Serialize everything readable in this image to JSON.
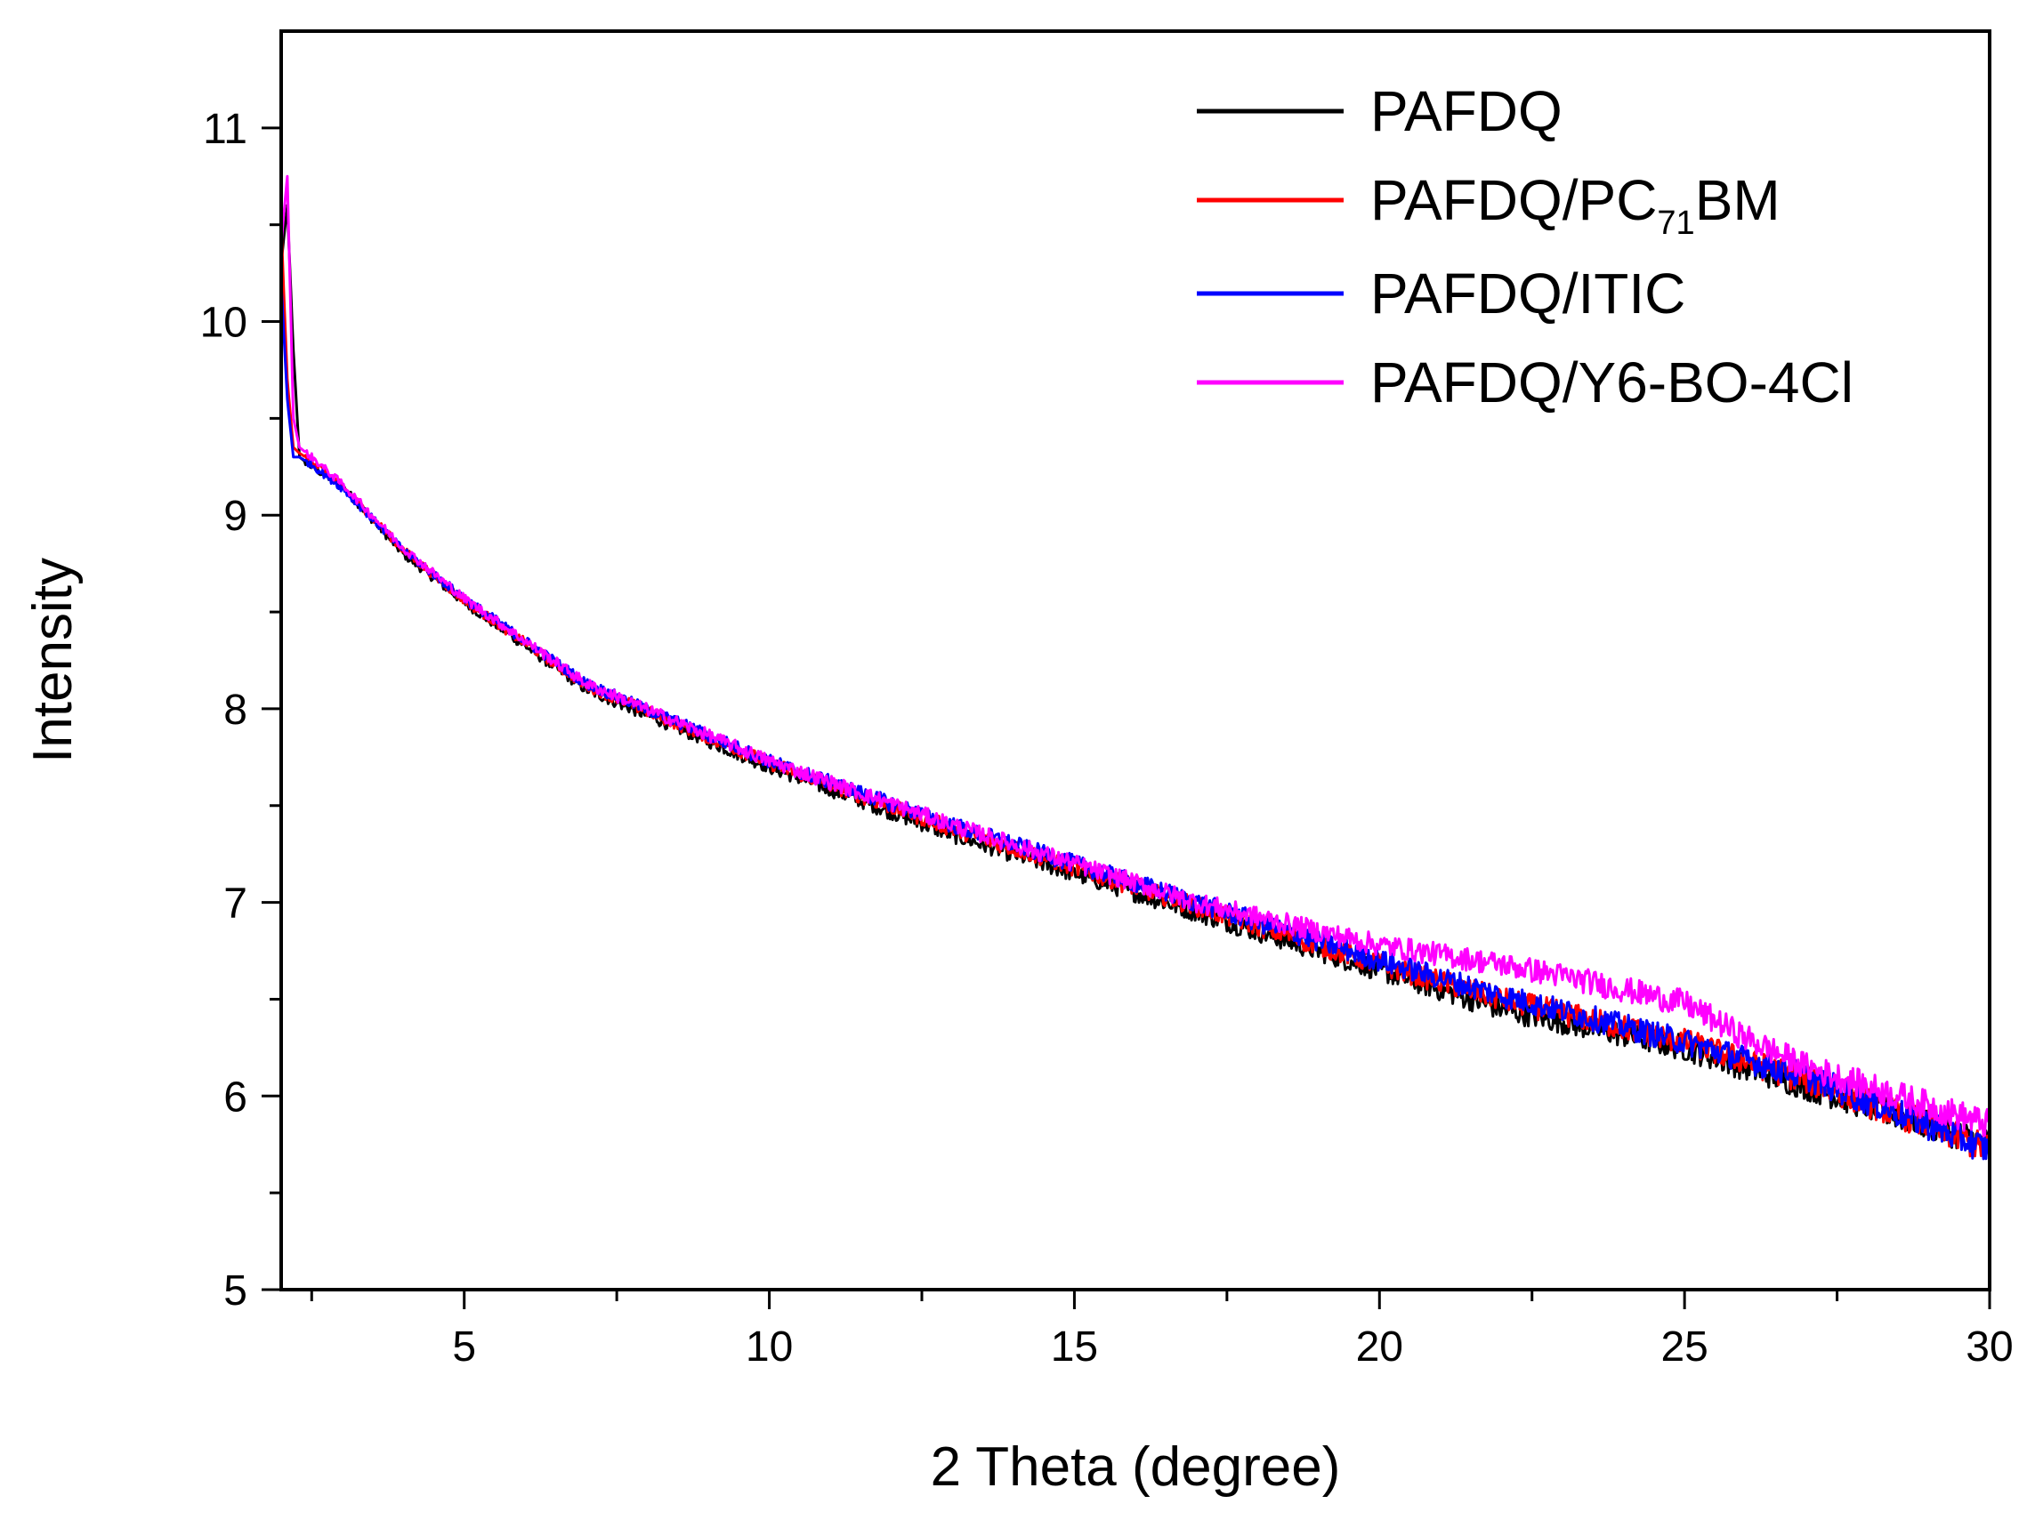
{
  "chart_data": {
    "type": "line",
    "title": "",
    "xlabel": "2 Theta (degree)",
    "ylabel": "Intensity",
    "xlim": [
      2,
      30
    ],
    "ylim": [
      5,
      11.5
    ],
    "x_ticks": [
      5,
      10,
      15,
      20,
      25,
      30
    ],
    "x_tick_labels": [
      "5",
      "10",
      "15",
      "20",
      "25",
      "30"
    ],
    "y_ticks": [
      5,
      6,
      7,
      8,
      9,
      10,
      11
    ],
    "y_tick_labels": [
      "5",
      "6",
      "7",
      "8",
      "9",
      "10",
      "11"
    ],
    "grid": false,
    "legend_position": "top-right",
    "series": [
      {
        "name": "PAFDQ",
        "legend_main": "PAFDQ",
        "legend_sub": "",
        "legend_tail": "",
        "color": "#000000",
        "x": [
          2.0,
          2.1,
          2.2,
          2.3,
          2.5,
          3,
          4,
          5,
          7,
          10,
          13,
          15,
          17,
          20,
          22,
          25,
          27,
          29,
          30
        ],
        "y": [
          10.3,
          10.6,
          9.85,
          9.3,
          9.25,
          9.15,
          8.8,
          8.55,
          8.1,
          7.7,
          7.35,
          7.15,
          6.95,
          6.65,
          6.45,
          6.25,
          6.05,
          5.85,
          5.75
        ]
      },
      {
        "name": "PAFDQ/PC71BM",
        "legend_main": "PAFDQ/PC",
        "legend_sub": "71",
        "legend_tail": "BM",
        "color": "#ff0000",
        "x": [
          2.0,
          2.1,
          2.2,
          2.3,
          2.5,
          3,
          4,
          5,
          7,
          10,
          13,
          15,
          17,
          20,
          22,
          25,
          27,
          29,
          30
        ],
        "y": [
          10.5,
          9.7,
          9.35,
          9.32,
          9.28,
          9.15,
          8.82,
          8.56,
          8.12,
          7.72,
          7.38,
          7.18,
          6.98,
          6.68,
          6.5,
          6.28,
          6.08,
          5.85,
          5.72
        ]
      },
      {
        "name": "PAFDQ/ITIC",
        "legend_main": "PAFDQ/ITIC",
        "legend_sub": "",
        "legend_tail": "",
        "color": "#0000ff",
        "x": [
          2.0,
          2.1,
          2.2,
          2.3,
          2.5,
          3,
          4,
          5,
          7,
          10,
          13,
          15,
          17,
          20,
          22,
          25,
          27,
          29,
          30
        ],
        "y": [
          10.2,
          9.6,
          9.3,
          9.3,
          9.26,
          9.14,
          8.82,
          8.57,
          8.13,
          7.73,
          7.4,
          7.2,
          7.0,
          6.7,
          6.52,
          6.28,
          6.1,
          5.85,
          5.72
        ]
      },
      {
        "name": "PAFDQ/Y6-BO-4Cl",
        "legend_main": "PAFDQ/Y6-BO-4Cl",
        "legend_sub": "",
        "legend_tail": "",
        "color": "#ff00ff",
        "x": [
          2.0,
          2.1,
          2.2,
          2.3,
          2.5,
          3,
          4,
          5,
          7,
          10,
          13,
          15,
          17,
          19,
          20,
          22,
          23,
          24,
          25,
          26,
          27,
          28,
          29,
          30
        ],
        "y": [
          10.4,
          10.75,
          9.5,
          9.35,
          9.3,
          9.16,
          8.83,
          8.57,
          8.13,
          7.73,
          7.4,
          7.2,
          7.0,
          6.85,
          6.78,
          6.68,
          6.62,
          6.55,
          6.48,
          6.3,
          6.15,
          6.05,
          5.95,
          5.85
        ]
      }
    ]
  }
}
